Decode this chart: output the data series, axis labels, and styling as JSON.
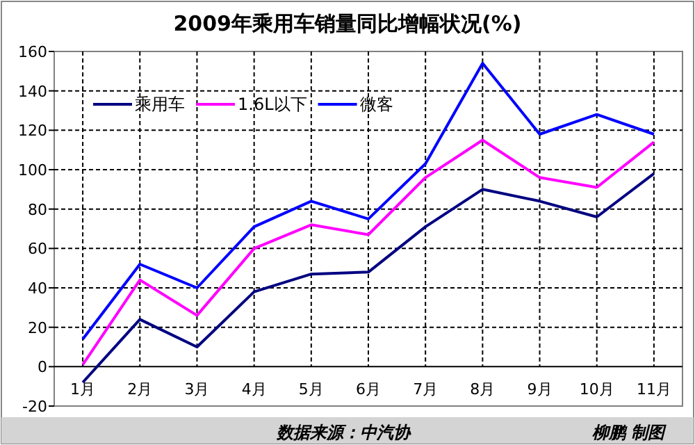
{
  "chart_data": {
    "type": "line",
    "title": "2009年乘用车销量同比增幅状况(%)",
    "categories": [
      "1月",
      "2月",
      "3月",
      "4月",
      "5月",
      "6月",
      "7月",
      "8月",
      "9月",
      "10月",
      "11月"
    ],
    "series": [
      {
        "name": "乘用车",
        "color": "#000080",
        "values": [
          -8,
          24,
          10,
          38,
          47,
          48,
          71,
          90,
          84,
          76,
          98
        ]
      },
      {
        "name": "1.6L以下",
        "color": "#ff00ff",
        "values": [
          1,
          44,
          26,
          60,
          72,
          67,
          96,
          115,
          96,
          91,
          114
        ]
      },
      {
        "name": "微客",
        "color": "#0000ff",
        "values": [
          14,
          52,
          40,
          71,
          84,
          75,
          103,
          154,
          118,
          128,
          118
        ]
      }
    ],
    "ylim": [
      -20,
      160
    ],
    "yticks": [
      -20,
      0,
      20,
      40,
      60,
      80,
      100,
      120,
      140,
      160
    ],
    "grid": true,
    "legend": "top left",
    "marker": "none",
    "line_style": "solid",
    "annotations": [
      "数据来源：中汽协",
      "柳鹏 制图"
    ]
  }
}
